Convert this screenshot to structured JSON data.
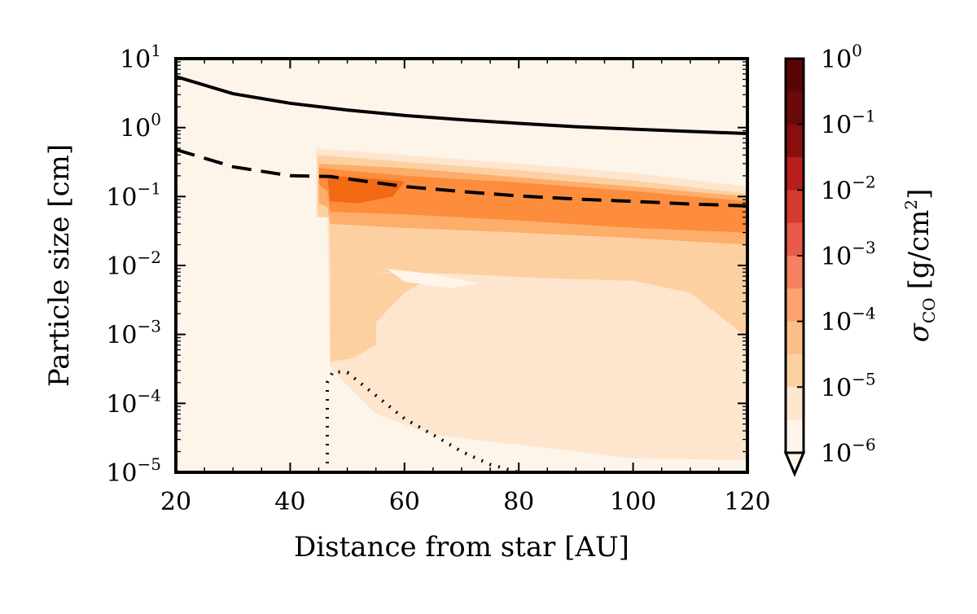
{
  "chart_data": {
    "type": "heatmap",
    "title": "",
    "xlabel": "Distance from star [AU]",
    "ylabel": "Particle size [cm]",
    "xlim": [
      20,
      120
    ],
    "ylim": [
      1e-05,
      10
    ],
    "yscale": "log",
    "x_ticks": [
      {
        "value": 20,
        "label": "20"
      },
      {
        "value": 40,
        "label": "40"
      },
      {
        "value": 60,
        "label": "60"
      },
      {
        "value": 80,
        "label": "80"
      },
      {
        "value": 100,
        "label": "100"
      },
      {
        "value": 120,
        "label": "120"
      }
    ],
    "y_ticks": [
      {
        "value": 10,
        "base": "10",
        "exp": "1"
      },
      {
        "value": 1,
        "base": "10",
        "exp": "0"
      },
      {
        "value": 0.1,
        "base": "10",
        "exp": "−1"
      },
      {
        "value": 0.01,
        "base": "10",
        "exp": "−2"
      },
      {
        "value": 0.001,
        "base": "10",
        "exp": "−3"
      },
      {
        "value": 0.0001,
        "base": "10",
        "exp": "−4"
      },
      {
        "value": 1e-05,
        "base": "10",
        "exp": "−5"
      }
    ],
    "colorbar": {
      "label_main": "σ",
      "label_sub": "CO",
      "label_unit": "[g/cm",
      "label_unit_exp": "2",
      "label_unit_close": "]",
      "range": [
        1e-06,
        1
      ],
      "extend": "min",
      "ticks": [
        {
          "value": 1,
          "base": "10",
          "exp": "0"
        },
        {
          "value": 0.1,
          "base": "10",
          "exp": "−1"
        },
        {
          "value": 0.01,
          "base": "10",
          "exp": "−2"
        },
        {
          "value": 0.001,
          "base": "10",
          "exp": "−3"
        },
        {
          "value": 0.0001,
          "base": "10",
          "exp": "−4"
        },
        {
          "value": 1e-05,
          "base": "10",
          "exp": "−5"
        },
        {
          "value": 1e-06,
          "base": "10",
          "exp": "−6"
        }
      ],
      "levels": [
        "#fff5eb",
        "#fee6ce",
        "#fdd0a2",
        "#fdae6b",
        "#fd8d3c",
        "#f16913",
        "#e6550d",
        "#d94801",
        "#a63603",
        "#7f2704"
      ],
      "colors": [
        "#fff5eb",
        "#fee6ce",
        "#fdd0a2",
        "#fdbe8a",
        "#fca371",
        "#f6805f",
        "#ea5a48",
        "#d63b31",
        "#b81e1c",
        "#8a0e0e",
        "#6b0a0a",
        "#5a0505"
      ]
    },
    "background_color": "#fef5ea",
    "series": [
      {
        "name": "solid",
        "style": "solid",
        "x": [
          20,
          30,
          40,
          50,
          60,
          70,
          80,
          90,
          100,
          110,
          120
        ],
        "y": [
          5.5,
          3.1,
          2.25,
          1.8,
          1.5,
          1.3,
          1.15,
          1.03,
          0.95,
          0.88,
          0.82
        ]
      },
      {
        "name": "dashed",
        "style": "dashed",
        "x": [
          20,
          30,
          40,
          47,
          60,
          70,
          80,
          90,
          100,
          110,
          120
        ],
        "y": [
          0.48,
          0.27,
          0.2,
          0.195,
          0.14,
          0.118,
          0.102,
          0.092,
          0.085,
          0.078,
          0.073
        ]
      },
      {
        "name": "dotted",
        "style": "dotted",
        "x": [
          46.5,
          46.5,
          47.5,
          50,
          55,
          60,
          65,
          70,
          75,
          80,
          84
        ],
        "y": [
          1e-05,
          0.0002,
          0.00029,
          0.00028,
          0.00013,
          6e-05,
          3.5e-05,
          2e-05,
          1.3e-05,
          1e-05,
          1e-05
        ]
      }
    ],
    "regions": [
      {
        "level": 1,
        "points": [
          [
            44.5,
            0.5
          ],
          [
            60,
            0.4
          ],
          [
            80,
            0.3
          ],
          [
            100,
            0.22
          ],
          [
            120,
            0.14
          ],
          [
            120,
            1.5e-05
          ],
          [
            100,
            1.6e-05
          ],
          [
            80,
            2.5e-05
          ],
          [
            65,
            3.5e-05
          ],
          [
            55,
            7e-05
          ],
          [
            50,
            0.00018
          ],
          [
            47,
            0.00033
          ],
          [
            46.5,
            0.05
          ],
          [
            44.5,
            0.05
          ]
        ]
      },
      {
        "level": 2,
        "points": [
          [
            44.8,
            0.4
          ],
          [
            60,
            0.32
          ],
          [
            80,
            0.24
          ],
          [
            100,
            0.17
          ],
          [
            120,
            0.11
          ],
          [
            120,
            0.0009
          ],
          [
            110,
            0.004
          ],
          [
            100,
            0.006
          ],
          [
            85,
            0.0065
          ],
          [
            70,
            0.0075
          ],
          [
            60,
            0.008
          ],
          [
            50,
            0.008
          ],
          [
            47,
            0.009
          ],
          [
            46.8,
            0.05
          ],
          [
            44.8,
            0.05
          ]
        ]
      },
      {
        "level": 3,
        "points": [
          [
            45,
            0.3
          ],
          [
            60,
            0.26
          ],
          [
            80,
            0.19
          ],
          [
            100,
            0.14
          ],
          [
            120,
            0.1
          ],
          [
            120,
            0.02
          ],
          [
            100,
            0.025
          ],
          [
            80,
            0.03
          ],
          [
            60,
            0.035
          ],
          [
            47,
            0.04
          ],
          [
            46.5,
            0.07
          ],
          [
            45,
            0.08
          ]
        ]
      },
      {
        "level": 4,
        "points": [
          [
            45,
            0.26
          ],
          [
            60,
            0.2
          ],
          [
            80,
            0.16
          ],
          [
            100,
            0.12
          ],
          [
            120,
            0.085
          ],
          [
            120,
            0.03
          ],
          [
            100,
            0.035
          ],
          [
            80,
            0.045
          ],
          [
            60,
            0.055
          ],
          [
            47,
            0.06
          ],
          [
            46.5,
            0.12
          ],
          [
            45,
            0.15
          ]
        ]
      },
      {
        "level": 5,
        "points": [
          [
            46.5,
            0.2
          ],
          [
            55,
            0.18
          ],
          [
            60,
            0.165
          ],
          [
            58,
            0.1
          ],
          [
            52,
            0.08
          ],
          [
            47,
            0.085
          ]
        ]
      },
      {
        "level": 3,
        "points": [
          [
            47,
            0.002
          ],
          [
            50,
            0.0025
          ],
          [
            52,
            0.0018
          ],
          [
            53,
            0.0011
          ],
          [
            52,
            0.00055
          ],
          [
            49,
            0.00045
          ],
          [
            47,
            0.0005
          ]
        ]
      },
      {
        "level": 2,
        "points": [
          [
            47,
            0.009
          ],
          [
            55,
            0.008
          ],
          [
            65,
            0.007
          ],
          [
            60,
            0.004
          ],
          [
            55,
            0.0015
          ],
          [
            55,
            0.0007
          ],
          [
            51,
            0.00045
          ],
          [
            47,
            0.0004
          ]
        ]
      },
      {
        "level": 0,
        "points": [
          [
            57,
            0.0089
          ],
          [
            65,
            0.0075
          ],
          [
            73,
            0.0055
          ],
          [
            68,
            0.0047
          ],
          [
            60,
            0.0058
          ]
        ]
      },
      {
        "level": 1,
        "points": [
          [
            47,
            0.0003
          ],
          [
            52,
            0.0004
          ],
          [
            58,
            0.0003
          ],
          [
            66,
            0.00025
          ],
          [
            80,
            0.00025
          ],
          [
            120,
            0.0002
          ],
          [
            120,
            7e-05
          ],
          [
            100,
            4e-05
          ],
          [
            80,
            3e-05
          ],
          [
            62,
            6e-05
          ],
          [
            55,
            0.00015
          ]
        ]
      }
    ]
  }
}
